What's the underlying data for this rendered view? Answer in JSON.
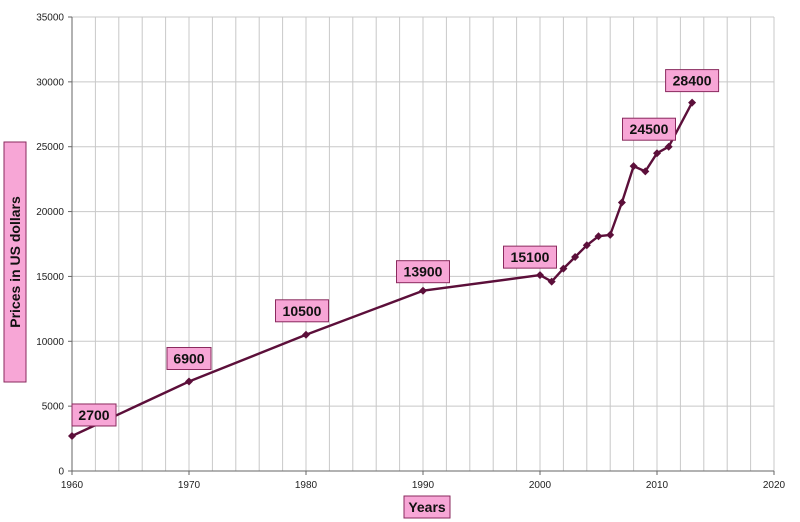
{
  "chart_data": {
    "type": "line",
    "title": "",
    "xlabel": "Years",
    "ylabel": "Prices in US dollars",
    "xlim": [
      1960,
      2020
    ],
    "ylim": [
      0,
      35000
    ],
    "x_ticks": [
      1960,
      1970,
      1980,
      1990,
      2000,
      2010,
      2020
    ],
    "y_ticks": [
      0,
      5000,
      10000,
      15000,
      20000,
      25000,
      30000,
      35000
    ],
    "grid": true,
    "legend": "none",
    "series": [
      {
        "color": "#5c0f3a",
        "points": [
          {
            "x": 1960,
            "y": 2700
          },
          {
            "x": 1970,
            "y": 6900
          },
          {
            "x": 1980,
            "y": 10500
          },
          {
            "x": 1990,
            "y": 13900
          },
          {
            "x": 2000,
            "y": 15100
          },
          {
            "x": 2001,
            "y": 14600
          },
          {
            "x": 2002,
            "y": 15600
          },
          {
            "x": 2003,
            "y": 16500
          },
          {
            "x": 2004,
            "y": 17400
          },
          {
            "x": 2005,
            "y": 18100
          },
          {
            "x": 2006,
            "y": 18200
          },
          {
            "x": 2007,
            "y": 20700
          },
          {
            "x": 2008,
            "y": 23500
          },
          {
            "x": 2009,
            "y": 23100
          },
          {
            "x": 2010,
            "y": 24500
          },
          {
            "x": 2011,
            "y": 25000
          },
          {
            "x": 2013,
            "y": 28400
          }
        ]
      }
    ],
    "data_labels": [
      {
        "x": 1960,
        "y": 2700,
        "text": "2700"
      },
      {
        "x": 1970,
        "y": 6900,
        "text": "6900"
      },
      {
        "x": 1980,
        "y": 10500,
        "text": "10500"
      },
      {
        "x": 1990,
        "y": 13900,
        "text": "13900"
      },
      {
        "x": 2000,
        "y": 15100,
        "text": "15100"
      },
      {
        "x": 2010,
        "y": 24500,
        "text": "24500"
      },
      {
        "x": 2013,
        "y": 28400,
        "text": "28400"
      }
    ],
    "colors": {
      "line": "#5c0f3a",
      "label_fill": "#f7a6d6",
      "label_border": "#8a2a5e",
      "grid": "#c8c8c8",
      "axis": "#666666"
    }
  }
}
